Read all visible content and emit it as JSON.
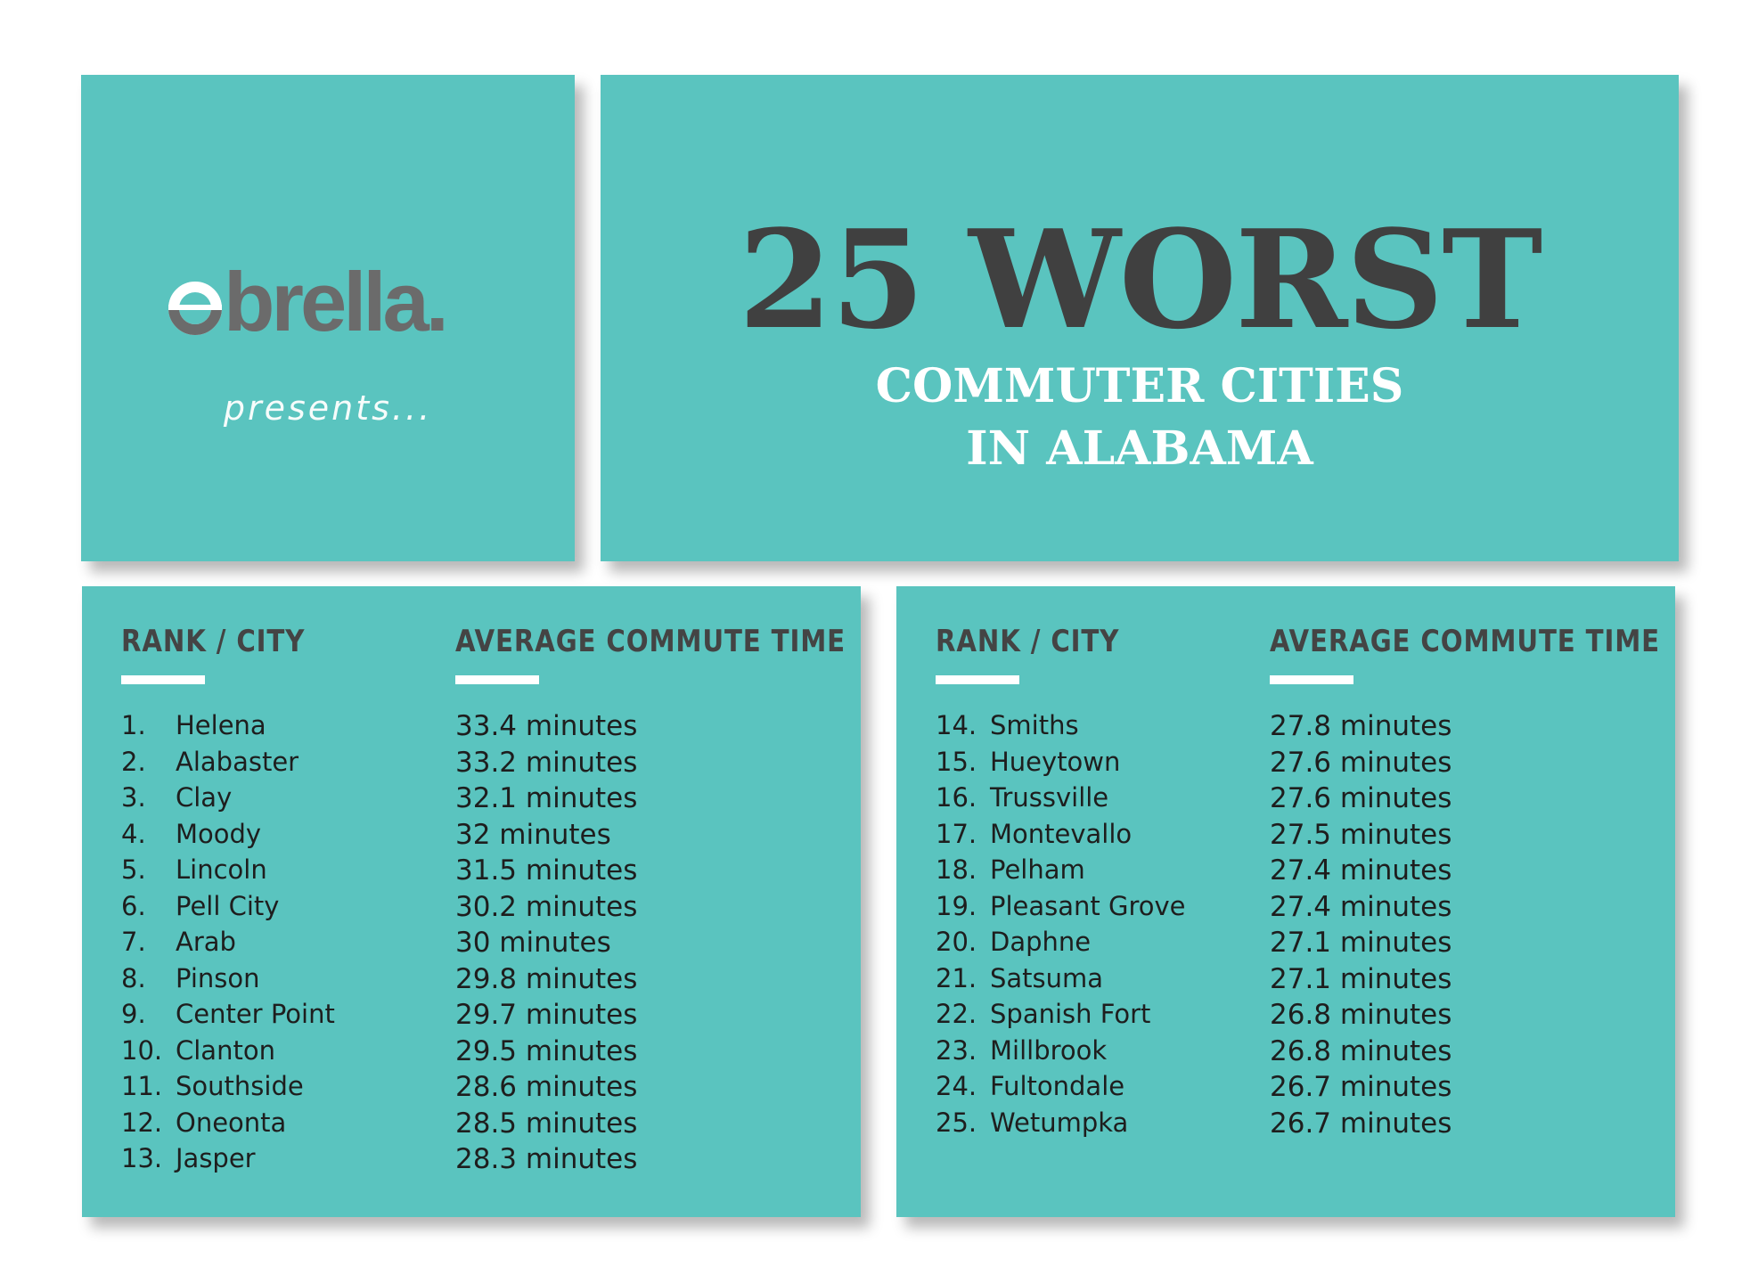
{
  "brand": {
    "logo_text": "obrella.",
    "presents": "presents..."
  },
  "title": {
    "main": "25 WORST",
    "line1": "COMMUTER CITIES",
    "line2": "IN ALABAMA"
  },
  "colors": {
    "panel": "#5ac4bf",
    "dark_text": "#404040",
    "logo_gray": "#6b6b6b",
    "white": "#ffffff"
  },
  "columns": {
    "rank_city": "RANK / CITY",
    "avg_time": "AVERAGE COMMUTE TIME"
  },
  "left_rows": [
    {
      "rank": "1.",
      "city": "Helena",
      "time": "33.4 minutes"
    },
    {
      "rank": "2.",
      "city": "Alabaster",
      "time": "33.2 minutes"
    },
    {
      "rank": "3.",
      "city": "Clay",
      "time": "32.1 minutes"
    },
    {
      "rank": "4.",
      "city": "Moody",
      "time": "32 minutes"
    },
    {
      "rank": "5.",
      "city": "Lincoln",
      "time": "31.5 minutes"
    },
    {
      "rank": "6.",
      "city": "Pell City",
      "time": "30.2 minutes"
    },
    {
      "rank": "7.",
      "city": "Arab",
      "time": "30 minutes"
    },
    {
      "rank": "8.",
      "city": "Pinson",
      "time": "29.8 minutes"
    },
    {
      "rank": "9.",
      "city": "Center Point",
      "time": "29.7 minutes"
    },
    {
      "rank": "10.",
      "city": "Clanton",
      "time": "29.5 minutes"
    },
    {
      "rank": "11.",
      "city": "Southside",
      "time": "28.6 minutes"
    },
    {
      "rank": "12.",
      "city": "Oneonta",
      "time": "28.5 minutes"
    },
    {
      "rank": "13.",
      "city": "Jasper",
      "time": "28.3 minutes"
    }
  ],
  "right_rows": [
    {
      "rank": "14.",
      "city": "Smiths",
      "time": "27.8 minutes"
    },
    {
      "rank": "15.",
      "city": "Hueytown",
      "time": "27.6 minutes"
    },
    {
      "rank": "16.",
      "city": "Trussville",
      "time": "27.6 minutes"
    },
    {
      "rank": "17.",
      "city": "Montevallo",
      "time": "27.5 minutes"
    },
    {
      "rank": "18.",
      "city": "Pelham",
      "time": "27.4 minutes"
    },
    {
      "rank": "19.",
      "city": "Pleasant Grove",
      "time": "27.4 minutes"
    },
    {
      "rank": "20.",
      "city": "Daphne",
      "time": "27.1 minutes"
    },
    {
      "rank": "21.",
      "city": "Satsuma",
      "time": "27.1 minutes"
    },
    {
      "rank": "22.",
      "city": "Spanish Fort",
      "time": "26.8 minutes"
    },
    {
      "rank": "23.",
      "city": "Millbrook",
      "time": "26.8 minutes"
    },
    {
      "rank": "24.",
      "city": "Fultondale",
      "time": "26.7 minutes"
    },
    {
      "rank": "25.",
      "city": "Wetumpka",
      "time": "26.7 minutes"
    }
  ]
}
